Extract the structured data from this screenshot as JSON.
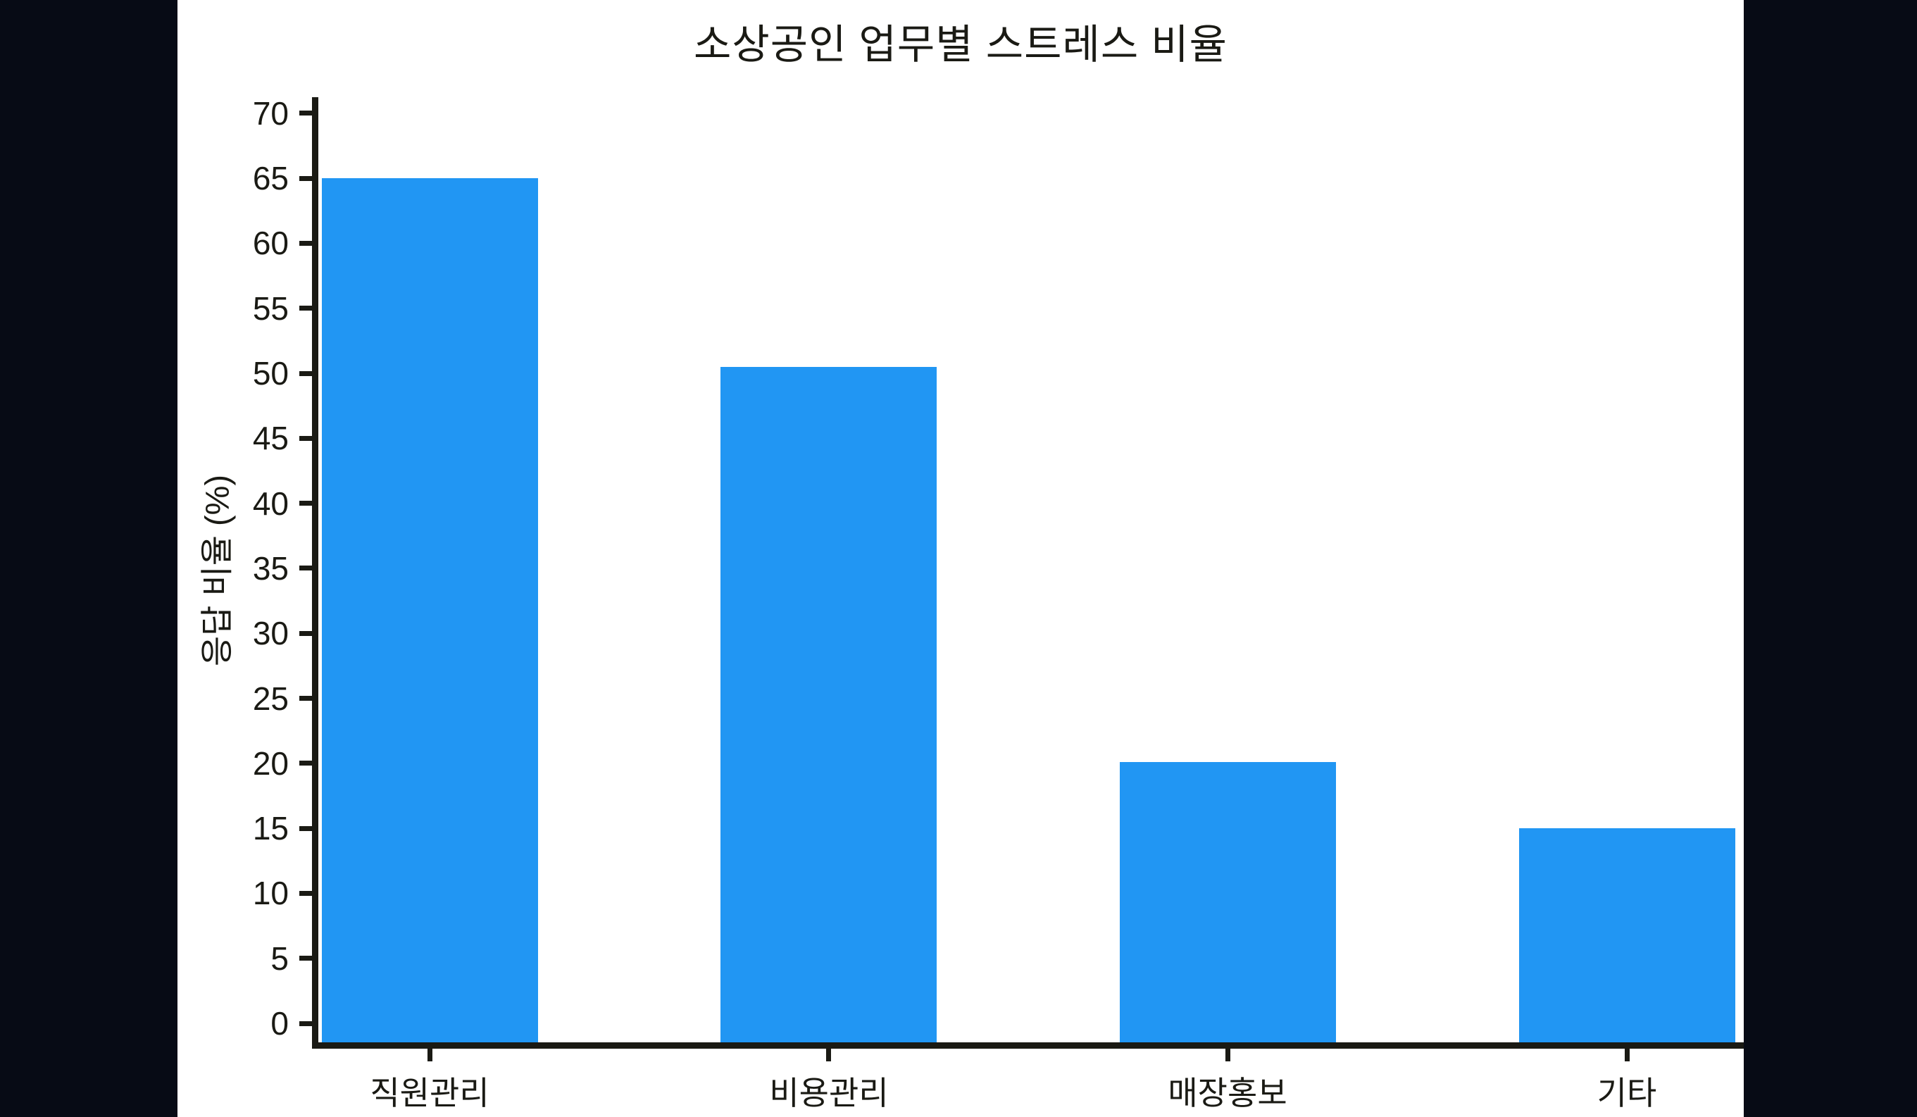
{
  "chart_data": {
    "type": "bar",
    "title": "소상공인 업무별 스트레스 비율",
    "xlabel": "",
    "ylabel": "응답 비율 (%)",
    "categories": [
      "직원관리",
      "비용관리",
      "매장홍보",
      "기타"
    ],
    "values": [
      65,
      50.5,
      20.1,
      15
    ],
    "y_ticks": [
      0,
      5,
      10,
      15,
      20,
      25,
      30,
      35,
      40,
      45,
      50,
      55,
      60,
      65,
      70
    ],
    "ylim": [
      0,
      70
    ],
    "grid": "off",
    "legend": "none"
  },
  "colors": {
    "background": "#070b15",
    "figure": "#ffffff",
    "bar": "#2196f3",
    "axis": "#1a1a14",
    "text": "#1a1a14"
  }
}
